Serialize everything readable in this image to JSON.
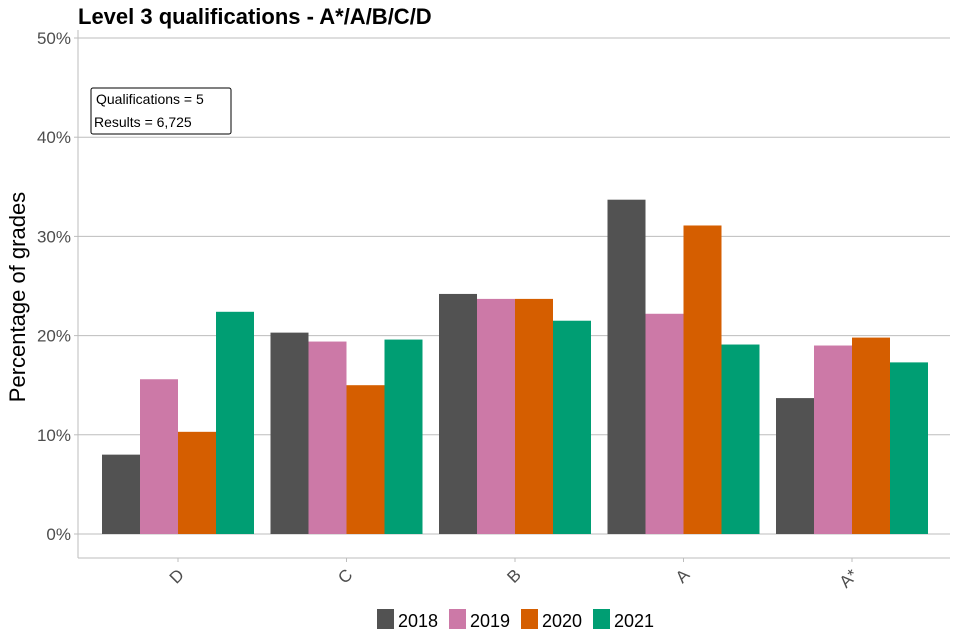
{
  "chart_data": {
    "type": "bar",
    "title": "Level 3 qualifications  - A*/A/B/C/D",
    "xlabel": "",
    "ylabel": "Percentage of grades",
    "ylim": [
      0,
      50
    ],
    "yticks": [
      0,
      10,
      20,
      30,
      40,
      50
    ],
    "ytick_labels": [
      "0%",
      "10%",
      "20%",
      "30%",
      "40%",
      "50%"
    ],
    "grid": true,
    "categories": [
      "D",
      "C",
      "B",
      "A",
      "A*"
    ],
    "series": [
      {
        "name": "2018",
        "color": "#525252",
        "values": [
          8.0,
          20.3,
          24.2,
          33.7,
          13.7
        ]
      },
      {
        "name": "2019",
        "color": "#cc79a7",
        "values": [
          15.6,
          19.4,
          23.7,
          22.2,
          19.0
        ]
      },
      {
        "name": "2020",
        "color": "#d55e00",
        "values": [
          10.3,
          15.0,
          23.7,
          31.1,
          19.8
        ]
      },
      {
        "name": "2021",
        "color": "#009e73",
        "values": [
          22.4,
          19.6,
          21.5,
          19.1,
          17.3
        ]
      }
    ],
    "legend_position": "bottom",
    "annotations": [
      "Qualifications = 5",
      "Results = 6,725"
    ]
  }
}
